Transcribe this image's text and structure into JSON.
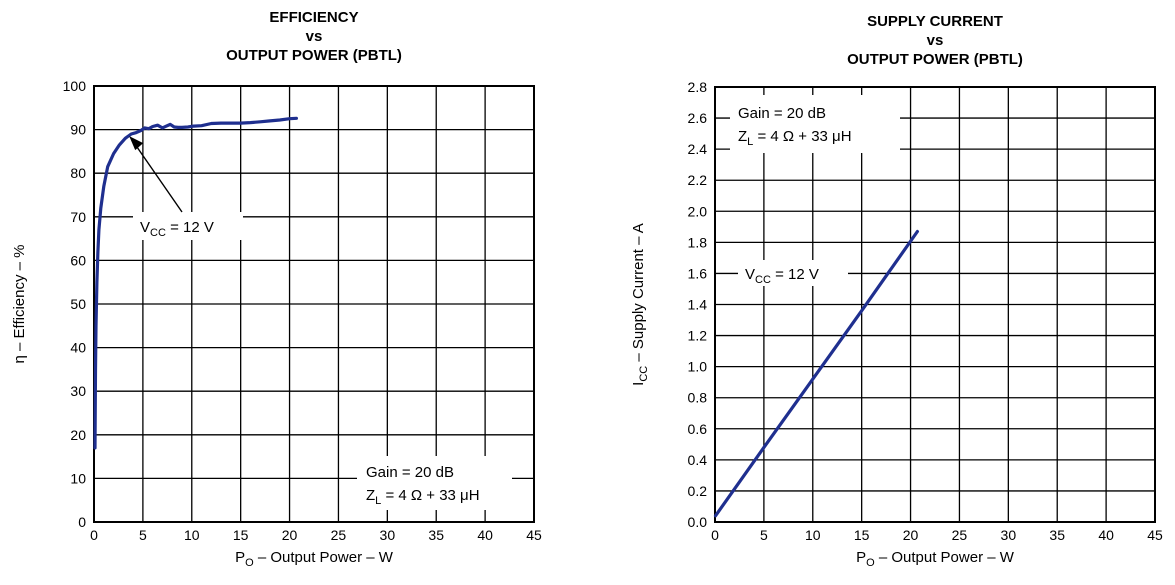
{
  "chart_data": [
    {
      "type": "line",
      "title": [
        "EFFICIENCY",
        "vs",
        "OUTPUT POWER (PBTL)"
      ],
      "xlabel": {
        "prefix": "P",
        "sub": "O",
        "rest": " – Output Power – W"
      },
      "ylabel": "η – Efficiency – %",
      "xlim": [
        0,
        45
      ],
      "ylim": [
        0,
        100
      ],
      "xticks": [
        0,
        5,
        10,
        15,
        20,
        25,
        30,
        35,
        40,
        45
      ],
      "yticks": [
        0,
        10,
        20,
        30,
        40,
        50,
        60,
        70,
        80,
        90,
        100
      ],
      "grid": true,
      "annotations": {
        "vcc": {
          "prefix": "V",
          "sub": "CC",
          "rest": " = 12 V",
          "arrow_to": [
            3.6,
            88.5
          ]
        },
        "gain": "Gain = 20 dB",
        "zl": {
          "prefix": "Z",
          "sub": "L",
          "rest": " = 4 Ω + 33 μH"
        }
      },
      "series": [
        {
          "color": "#1f2f8f",
          "x": [
            0.1,
            0.15,
            0.2,
            0.3,
            0.4,
            0.5,
            0.7,
            1.0,
            1.4,
            2.0,
            2.6,
            3.2,
            3.8,
            4.3,
            4.8,
            5.2,
            5.6,
            6.0,
            6.5,
            7.0,
            7.4,
            7.8,
            8.2,
            8.6,
            9.0,
            9.6,
            10.2,
            11.0,
            12.0,
            13.0,
            14.0,
            15.0,
            16.0,
            17.0,
            18.0,
            19.0,
            20.0,
            20.7
          ],
          "y": [
            17,
            35,
            45,
            55,
            62,
            67,
            72,
            77,
            81.5,
            84.5,
            86.5,
            88,
            89,
            89.3,
            89.8,
            90.4,
            90.2,
            90.7,
            91.0,
            90.4,
            90.8,
            91.2,
            90.6,
            90.5,
            90.5,
            90.6,
            90.8,
            90.9,
            91.4,
            91.5,
            91.5,
            91.5,
            91.6,
            91.8,
            92.0,
            92.2,
            92.5,
            92.6
          ]
        }
      ]
    },
    {
      "type": "line",
      "title": [
        "SUPPLY CURRENT",
        "vs",
        "OUTPUT POWER (PBTL)"
      ],
      "xlabel": {
        "prefix": "P",
        "sub": "O",
        "rest": " – Output Power – W"
      },
      "ylabel": {
        "prefix": "I",
        "sub": "CC",
        "rest": " – Supply Current – A"
      },
      "xlim": [
        0,
        45
      ],
      "ylim": [
        0,
        2.8
      ],
      "xticks": [
        0,
        5,
        10,
        15,
        20,
        25,
        30,
        35,
        40,
        45
      ],
      "yticks": [
        "0.0",
        "0.2",
        "0.4",
        "0.6",
        "0.8",
        "1.0",
        "1.2",
        "1.4",
        "1.6",
        "1.8",
        "2.0",
        "2.2",
        "2.4",
        "2.6",
        "2.8"
      ],
      "grid": true,
      "annotations": {
        "gain": "Gain = 20 dB",
        "zl": {
          "prefix": "Z",
          "sub": "L",
          "rest": " = 4 Ω + 33 μH"
        },
        "vcc": {
          "prefix": "V",
          "sub": "CC",
          "rest": " = 12 V"
        }
      },
      "series": [
        {
          "color": "#1f2f8f",
          "x": [
            0.05,
            5.0,
            10.0,
            15.0,
            20.7
          ],
          "y": [
            0.04,
            0.48,
            0.92,
            1.36,
            1.87
          ]
        }
      ]
    }
  ]
}
